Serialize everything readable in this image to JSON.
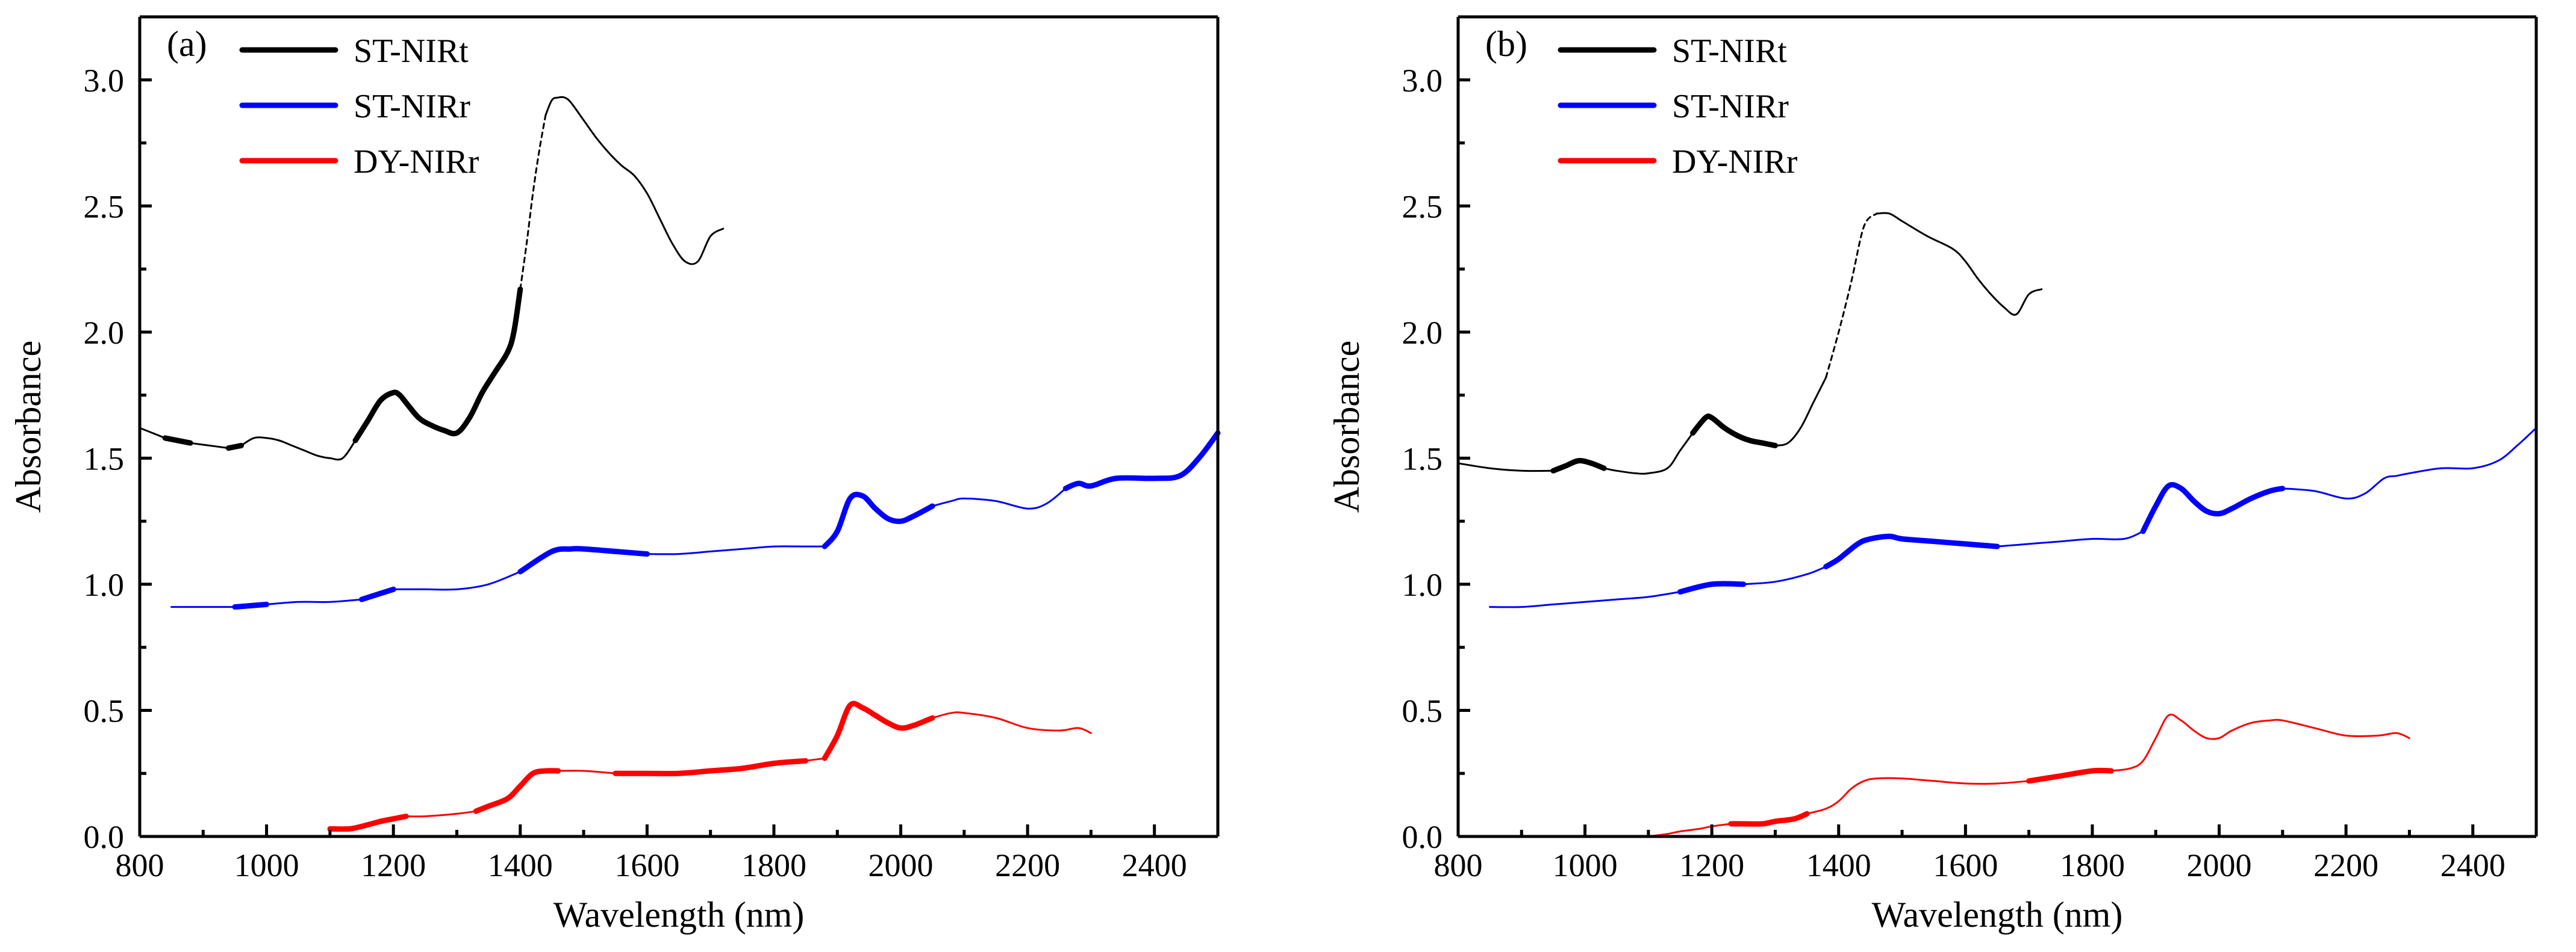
{
  "chart_data": [
    {
      "type": "line",
      "panel_label": "(a)",
      "xlabel": "Wavelength (nm)",
      "ylabel": "Absorbance",
      "xlim": [
        800,
        2500
      ],
      "ylim": [
        0.0,
        3.25
      ],
      "x_ticks": [
        800,
        1000,
        1200,
        1400,
        1600,
        1800,
        2000,
        2200,
        2400
      ],
      "x_tick_labels": [
        "800",
        "1000",
        "1200",
        "1400",
        "1600",
        "1800",
        "2000",
        "2200",
        "2400"
      ],
      "y_ticks": [
        0.0,
        0.5,
        1.0,
        1.5,
        2.0,
        2.5,
        3.0
      ],
      "y_tick_labels": [
        "0.0",
        "0.5",
        "1.0",
        "1.5",
        "2.0",
        "2.5",
        "3.0"
      ],
      "grid": false,
      "legend_position": "top-left",
      "series": [
        {
          "name": "ST-NIRt",
          "color": "#000000",
          "x": [
            800,
            840,
            880,
            910,
            940,
            960,
            980,
            1000,
            1020,
            1040,
            1060,
            1080,
            1100,
            1120,
            1140,
            1160,
            1180,
            1200,
            1210,
            1220,
            1240,
            1260,
            1280,
            1300,
            1320,
            1340,
            1360,
            1380,
            1390,
            1400,
            1410,
            1420,
            1430,
            1440,
            1450,
            1460,
            1470,
            1480,
            1500,
            1520,
            1540,
            1560,
            1580,
            1600,
            1620,
            1640,
            1660,
            1680,
            1700,
            1720
          ],
          "y": [
            1.62,
            1.58,
            1.56,
            1.55,
            1.54,
            1.55,
            1.58,
            1.58,
            1.57,
            1.55,
            1.53,
            1.51,
            1.5,
            1.5,
            1.57,
            1.65,
            1.73,
            1.76,
            1.75,
            1.72,
            1.66,
            1.63,
            1.61,
            1.6,
            1.66,
            1.76,
            1.84,
            1.92,
            2.0,
            2.17,
            2.35,
            2.55,
            2.72,
            2.86,
            2.92,
            2.93,
            2.93,
            2.91,
            2.84,
            2.77,
            2.71,
            2.66,
            2.62,
            2.55,
            2.45,
            2.35,
            2.28,
            2.28,
            2.38,
            2.41
          ],
          "thick_segments": [
            [
              840,
              880
            ],
            [
              940,
              960
            ],
            [
              1140,
              1400
            ]
          ],
          "dashed_segments": [
            [
              1400,
              1440
            ]
          ]
        },
        {
          "name": "ST-NIRr",
          "color": "#0000ff",
          "x": [
            850,
            900,
            950,
            1000,
            1050,
            1100,
            1150,
            1200,
            1250,
            1300,
            1350,
            1400,
            1450,
            1480,
            1500,
            1550,
            1600,
            1650,
            1700,
            1750,
            1800,
            1850,
            1880,
            1900,
            1920,
            1940,
            1960,
            1980,
            2000,
            2020,
            2050,
            2080,
            2100,
            2150,
            2200,
            2230,
            2260,
            2280,
            2300,
            2340,
            2400,
            2440,
            2470,
            2500
          ],
          "y": [
            0.91,
            0.91,
            0.91,
            0.92,
            0.93,
            0.93,
            0.94,
            0.98,
            0.98,
            0.98,
            1.0,
            1.05,
            1.13,
            1.14,
            1.14,
            1.13,
            1.12,
            1.12,
            1.13,
            1.14,
            1.15,
            1.15,
            1.15,
            1.21,
            1.34,
            1.35,
            1.3,
            1.26,
            1.25,
            1.27,
            1.31,
            1.33,
            1.34,
            1.33,
            1.3,
            1.32,
            1.38,
            1.4,
            1.39,
            1.42,
            1.42,
            1.43,
            1.5,
            1.6
          ],
          "thick_segments": [
            [
              960,
              1020
            ],
            [
              1140,
              1220
            ],
            [
              1380,
              1600
            ],
            [
              1890,
              2050
            ],
            [
              2260,
              2500
            ]
          ],
          "dashed_segments": []
        },
        {
          "name": "DY-NIRr",
          "color": "#ff0000",
          "x": [
            1100,
            1130,
            1150,
            1180,
            1200,
            1220,
            1250,
            1300,
            1330,
            1350,
            1380,
            1400,
            1420,
            1440,
            1460,
            1500,
            1550,
            1600,
            1650,
            1700,
            1750,
            1800,
            1850,
            1880,
            1900,
            1920,
            1940,
            1960,
            1980,
            2000,
            2020,
            2050,
            2080,
            2100,
            2150,
            2200,
            2250,
            2280,
            2300
          ],
          "y": [
            0.03,
            0.03,
            0.04,
            0.06,
            0.07,
            0.08,
            0.08,
            0.09,
            0.1,
            0.12,
            0.15,
            0.2,
            0.25,
            0.26,
            0.26,
            0.26,
            0.25,
            0.25,
            0.25,
            0.26,
            0.27,
            0.29,
            0.3,
            0.31,
            0.4,
            0.52,
            0.51,
            0.48,
            0.45,
            0.43,
            0.44,
            0.47,
            0.49,
            0.49,
            0.47,
            0.43,
            0.42,
            0.43,
            0.41
          ],
          "thick_segments": [
            [
              1100,
              1220
            ],
            [
              1320,
              1460
            ],
            [
              1560,
              1850
            ],
            [
              1890,
              2060
            ]
          ],
          "dashed_segments": []
        }
      ]
    },
    {
      "type": "line",
      "panel_label": "(b)",
      "xlabel": "Wavelength (nm)",
      "ylabel": "Absorbance",
      "xlim": [
        800,
        2500
      ],
      "ylim": [
        0.0,
        3.25
      ],
      "x_ticks": [
        800,
        1000,
        1200,
        1400,
        1600,
        1800,
        2000,
        2200,
        2400
      ],
      "x_tick_labels": [
        "800",
        "1000",
        "1200",
        "1400",
        "1600",
        "1800",
        "2000",
        "2200",
        "2400"
      ],
      "y_ticks": [
        0.0,
        0.5,
        1.0,
        1.5,
        2.0,
        2.5,
        3.0
      ],
      "y_tick_labels": [
        "0.0",
        "0.5",
        "1.0",
        "1.5",
        "2.0",
        "2.5",
        "3.0"
      ],
      "grid": false,
      "legend_position": "top-left",
      "series": [
        {
          "name": "ST-NIRt",
          "color": "#000000",
          "x": [
            800,
            850,
            900,
            950,
            970,
            990,
            1010,
            1030,
            1050,
            1080,
            1100,
            1130,
            1150,
            1170,
            1190,
            1200,
            1220,
            1240,
            1260,
            1280,
            1300,
            1320,
            1340,
            1360,
            1380,
            1400,
            1420,
            1440,
            1460,
            1480,
            1500,
            1540,
            1580,
            1600,
            1620,
            1640,
            1660,
            1680,
            1700,
            1720
          ],
          "y": [
            1.48,
            1.46,
            1.45,
            1.45,
            1.47,
            1.49,
            1.48,
            1.46,
            1.45,
            1.44,
            1.44,
            1.46,
            1.53,
            1.6,
            1.66,
            1.66,
            1.62,
            1.59,
            1.57,
            1.56,
            1.55,
            1.56,
            1.62,
            1.72,
            1.82,
            2.0,
            2.2,
            2.42,
            2.47,
            2.47,
            2.44,
            2.38,
            2.33,
            2.28,
            2.21,
            2.15,
            2.1,
            2.07,
            2.15,
            2.17
          ],
          "thick_segments": [
            [
              960,
              1030
            ],
            [
              1180,
              1290
            ]
          ],
          "dashed_segments": [
            [
              1380,
              1450
            ]
          ]
        },
        {
          "name": "ST-NIRr",
          "color": "#0000ff",
          "x": [
            850,
            900,
            950,
            1000,
            1050,
            1100,
            1150,
            1200,
            1250,
            1300,
            1350,
            1380,
            1400,
            1430,
            1450,
            1480,
            1500,
            1550,
            1600,
            1650,
            1700,
            1750,
            1800,
            1850,
            1880,
            1900,
            1920,
            1940,
            1960,
            1980,
            2000,
            2020,
            2050,
            2080,
            2100,
            2150,
            2200,
            2230,
            2260,
            2280,
            2300,
            2350,
            2400,
            2440,
            2470,
            2500
          ],
          "y": [
            0.91,
            0.91,
            0.92,
            0.93,
            0.94,
            0.95,
            0.97,
            1.0,
            1.0,
            1.01,
            1.04,
            1.07,
            1.1,
            1.16,
            1.18,
            1.19,
            1.18,
            1.17,
            1.16,
            1.15,
            1.16,
            1.17,
            1.18,
            1.18,
            1.21,
            1.31,
            1.39,
            1.38,
            1.33,
            1.29,
            1.28,
            1.3,
            1.34,
            1.37,
            1.38,
            1.37,
            1.34,
            1.36,
            1.42,
            1.43,
            1.44,
            1.46,
            1.46,
            1.49,
            1.55,
            1.62
          ],
          "thick_segments": [
            [
              1130,
              1240
            ],
            [
              1380,
              1640
            ],
            [
              1890,
              2090
            ]
          ],
          "dashed_segments": []
        },
        {
          "name": "DY-NIRr",
          "color": "#ff0000",
          "x": [
            1100,
            1130,
            1150,
            1180,
            1200,
            1230,
            1250,
            1280,
            1300,
            1330,
            1350,
            1380,
            1400,
            1420,
            1440,
            1460,
            1500,
            1550,
            1600,
            1650,
            1700,
            1750,
            1800,
            1830,
            1860,
            1880,
            1900,
            1920,
            1940,
            1960,
            1980,
            2000,
            2020,
            2050,
            2080,
            2100,
            2150,
            2200,
            2250,
            2280,
            2300
          ],
          "y": [
            0.0,
            0.01,
            0.02,
            0.03,
            0.04,
            0.05,
            0.05,
            0.05,
            0.06,
            0.07,
            0.09,
            0.11,
            0.14,
            0.19,
            0.22,
            0.23,
            0.23,
            0.22,
            0.21,
            0.21,
            0.22,
            0.24,
            0.26,
            0.26,
            0.27,
            0.3,
            0.39,
            0.48,
            0.46,
            0.42,
            0.39,
            0.39,
            0.42,
            0.45,
            0.46,
            0.46,
            0.43,
            0.4,
            0.4,
            0.41,
            0.39
          ],
          "thick_segments": [
            [
              1220,
              1340
            ],
            [
              1700,
              1830
            ]
          ],
          "dashed_segments": []
        }
      ]
    }
  ]
}
